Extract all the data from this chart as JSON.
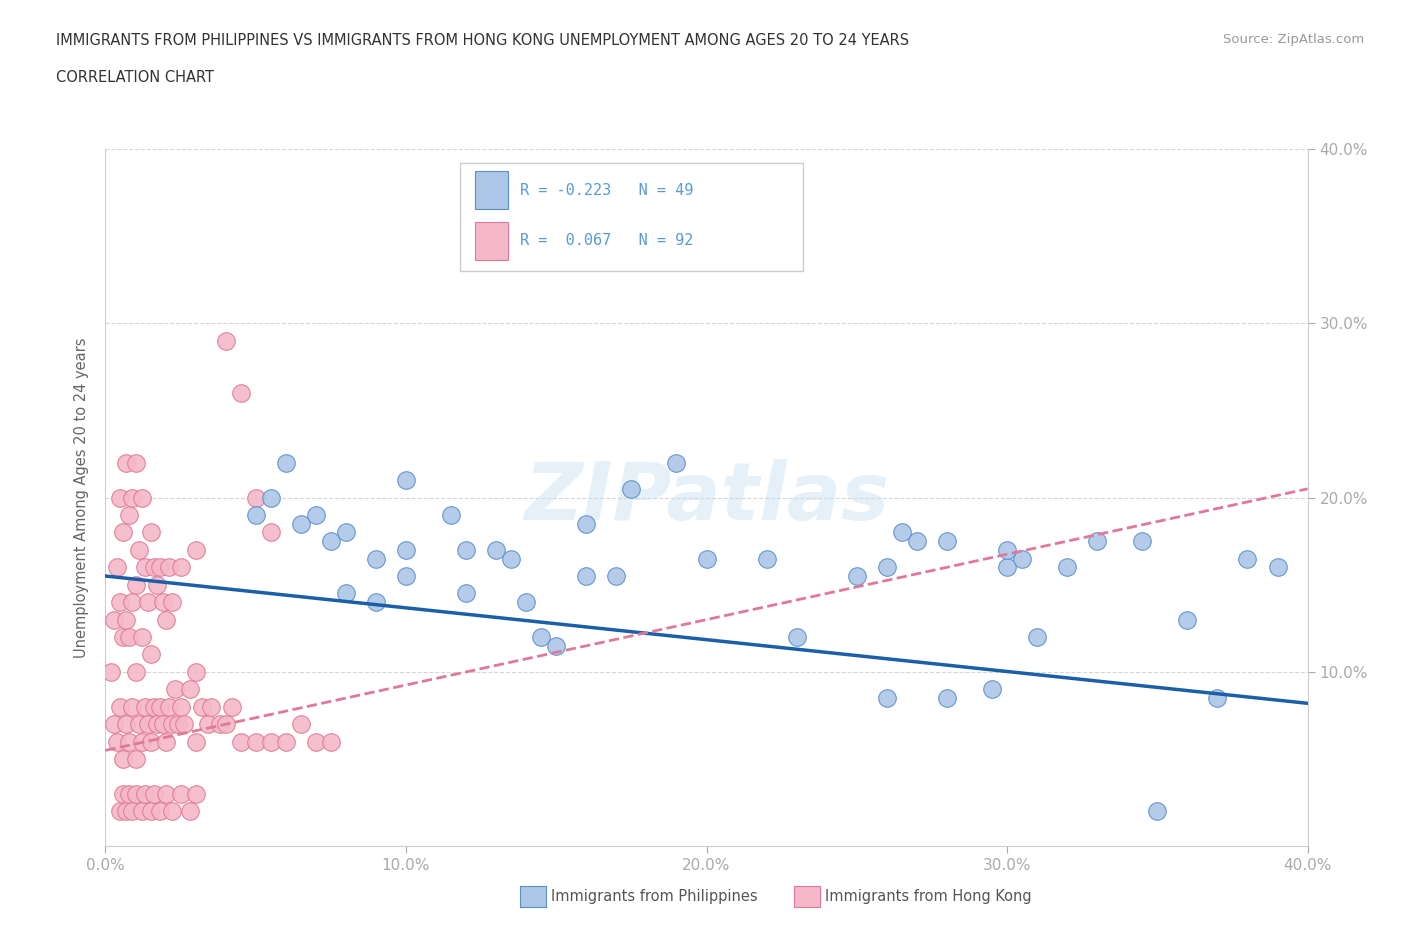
{
  "title_line1": "IMMIGRANTS FROM PHILIPPINES VS IMMIGRANTS FROM HONG KONG UNEMPLOYMENT AMONG AGES 20 TO 24 YEARS",
  "title_line2": "CORRELATION CHART",
  "source_text": "Source: ZipAtlas.com",
  "ylabel": "Unemployment Among Ages 20 to 24 years",
  "xlim": [
    0.0,
    0.4
  ],
  "ylim": [
    0.0,
    0.4
  ],
  "xtick_values": [
    0.0,
    0.1,
    0.2,
    0.3,
    0.4
  ],
  "xtick_labels": [
    "0.0%",
    "10.0%",
    "20.0%",
    "30.0%",
    "40.0%"
  ],
  "ytick_values": [
    0.1,
    0.2,
    0.3,
    0.4
  ],
  "ytick_labels": [
    "10.0%",
    "20.0%",
    "30.0%",
    "40.0%"
  ],
  "philippines_color": "#adc6e8",
  "hongkong_color": "#f5b8c8",
  "philippines_edge_color": "#5b8fc9",
  "hongkong_edge_color": "#e07898",
  "trend_philippines_color": "#1a5fa8",
  "trend_hongkong_color": "#e07898",
  "grid_color": "#cccccc",
  "background_color": "#ffffff",
  "watermark_text": "ZIPatlas",
  "legend_r_philippines": "R = -0.223",
  "legend_n_philippines": "N = 49",
  "legend_r_hongkong": "R =  0.067",
  "legend_n_hongkong": "N = 92",
  "philippines_label": "Immigrants from Philippines",
  "hongkong_label": "Immigrants from Hong Kong",
  "tick_color": "#5b9bd5",
  "trend_ph_x0": 0.0,
  "trend_ph_y0": 0.155,
  "trend_ph_x1": 0.4,
  "trend_ph_y1": 0.082,
  "trend_hk_x0": 0.0,
  "trend_hk_y0": 0.055,
  "trend_hk_x1": 0.4,
  "trend_hk_y1": 0.205,
  "philippines_x": [
    0.16,
    0.1,
    0.07,
    0.075,
    0.09,
    0.05,
    0.06,
    0.1,
    0.065,
    0.08,
    0.055,
    0.08,
    0.09,
    0.1,
    0.12,
    0.115,
    0.13,
    0.12,
    0.135,
    0.16,
    0.17,
    0.2,
    0.22,
    0.23,
    0.26,
    0.27,
    0.28,
    0.3,
    0.31,
    0.175,
    0.19,
    0.14,
    0.145,
    0.15,
    0.25,
    0.265,
    0.35,
    0.36,
    0.37,
    0.38,
    0.39,
    0.26,
    0.28,
    0.33,
    0.345,
    0.305,
    0.32,
    0.3,
    0.295
  ],
  "philippines_y": [
    0.155,
    0.17,
    0.19,
    0.175,
    0.165,
    0.19,
    0.22,
    0.21,
    0.185,
    0.18,
    0.2,
    0.145,
    0.14,
    0.155,
    0.17,
    0.19,
    0.17,
    0.145,
    0.165,
    0.185,
    0.155,
    0.165,
    0.165,
    0.12,
    0.16,
    0.175,
    0.175,
    0.16,
    0.12,
    0.205,
    0.22,
    0.14,
    0.12,
    0.115,
    0.155,
    0.18,
    0.02,
    0.13,
    0.085,
    0.165,
    0.16,
    0.085,
    0.085,
    0.175,
    0.175,
    0.165,
    0.16,
    0.17,
    0.09
  ],
  "hongkong_x": [
    0.002,
    0.003,
    0.003,
    0.004,
    0.004,
    0.005,
    0.005,
    0.005,
    0.006,
    0.006,
    0.006,
    0.007,
    0.007,
    0.007,
    0.008,
    0.008,
    0.008,
    0.009,
    0.009,
    0.009,
    0.01,
    0.01,
    0.01,
    0.01,
    0.011,
    0.011,
    0.012,
    0.012,
    0.012,
    0.013,
    0.013,
    0.014,
    0.014,
    0.015,
    0.015,
    0.015,
    0.016,
    0.016,
    0.017,
    0.017,
    0.018,
    0.018,
    0.019,
    0.019,
    0.02,
    0.02,
    0.021,
    0.021,
    0.022,
    0.022,
    0.023,
    0.024,
    0.025,
    0.025,
    0.026,
    0.028,
    0.03,
    0.03,
    0.03,
    0.032,
    0.034,
    0.035,
    0.038,
    0.04,
    0.042,
    0.045,
    0.05,
    0.055,
    0.06,
    0.065,
    0.07,
    0.075,
    0.04,
    0.045,
    0.05,
    0.055,
    0.005,
    0.006,
    0.007,
    0.008,
    0.009,
    0.01,
    0.012,
    0.013,
    0.015,
    0.016,
    0.018,
    0.02,
    0.022,
    0.025,
    0.028,
    0.03
  ],
  "hongkong_y": [
    0.1,
    0.07,
    0.13,
    0.06,
    0.16,
    0.08,
    0.14,
    0.2,
    0.05,
    0.12,
    0.18,
    0.07,
    0.13,
    0.22,
    0.06,
    0.12,
    0.19,
    0.08,
    0.14,
    0.2,
    0.05,
    0.1,
    0.15,
    0.22,
    0.07,
    0.17,
    0.06,
    0.12,
    0.2,
    0.08,
    0.16,
    0.07,
    0.14,
    0.06,
    0.11,
    0.18,
    0.08,
    0.16,
    0.07,
    0.15,
    0.08,
    0.16,
    0.07,
    0.14,
    0.06,
    0.13,
    0.08,
    0.16,
    0.07,
    0.14,
    0.09,
    0.07,
    0.08,
    0.16,
    0.07,
    0.09,
    0.06,
    0.1,
    0.17,
    0.08,
    0.07,
    0.08,
    0.07,
    0.07,
    0.08,
    0.06,
    0.06,
    0.06,
    0.06,
    0.07,
    0.06,
    0.06,
    0.29,
    0.26,
    0.2,
    0.18,
    0.02,
    0.03,
    0.02,
    0.03,
    0.02,
    0.03,
    0.02,
    0.03,
    0.02,
    0.03,
    0.02,
    0.03,
    0.02,
    0.03,
    0.02,
    0.03
  ]
}
